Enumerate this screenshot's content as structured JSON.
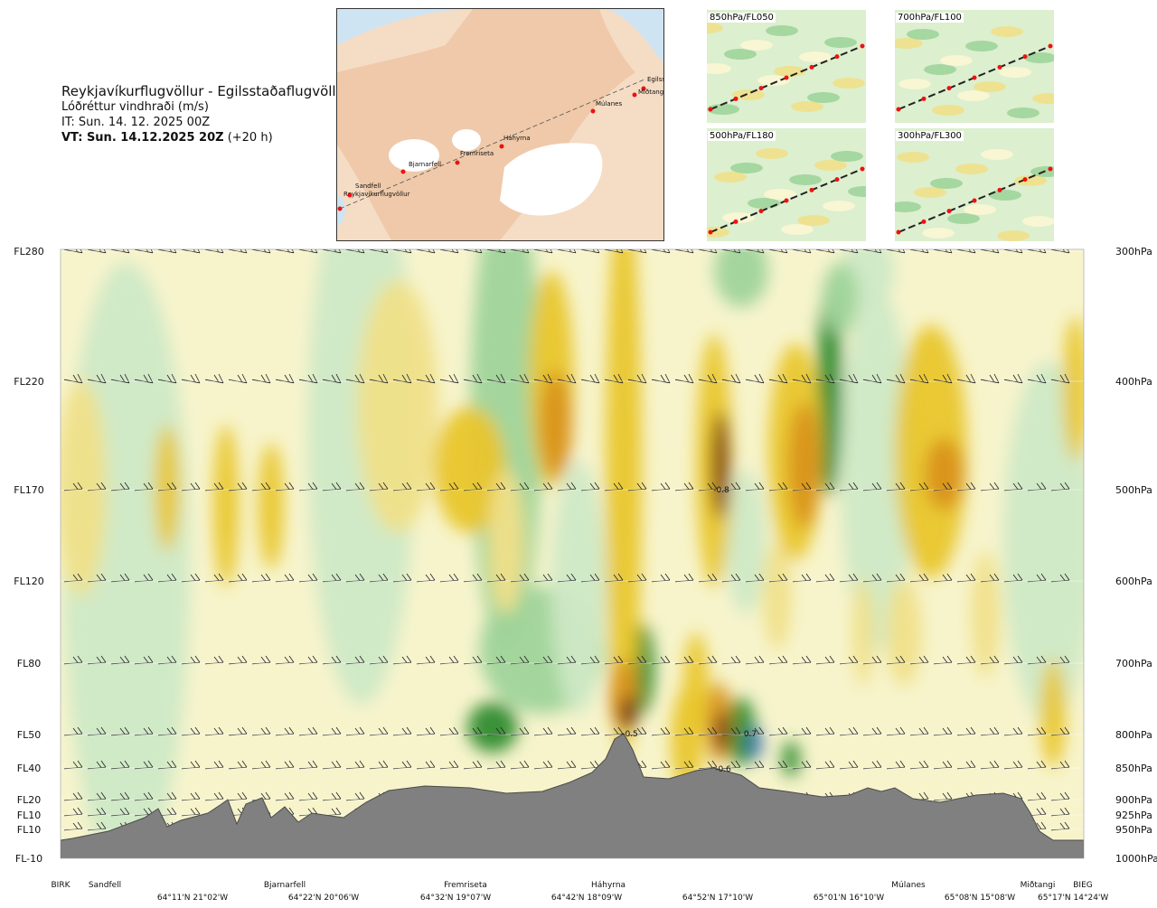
{
  "header": {
    "route": "Reykjavíkurflugvöllur - Egilsstaðaflugvöllur",
    "quantity": "Lóðréttur vindhraði (m/s)",
    "init_time": "IT: Sun. 14. 12. 2025 00Z",
    "valid_time_bold": "VT: Sun. 14.12.2025 20Z",
    "valid_time_offset": " (+20 h)"
  },
  "route_map": {
    "points": [
      "Reykjavíkurflugvöllur",
      "Sandfell",
      "Bjarnarfell",
      "Fremriseta",
      "Háhyrna",
      "Múlanes",
      "Egilsst",
      "Miðtangi"
    ]
  },
  "insets": [
    "850hPa/FL050",
    "700hPa/FL100",
    "500hPa/FL180",
    "300hPa/FL300"
  ],
  "chart_data": {
    "type": "heatmap",
    "title": "Lóðréttur vindhraði (m/s)",
    "left_axis": [
      "FL280",
      "FL220",
      "FL170",
      "FL120",
      "FL80",
      "FL50",
      "FL40",
      "FL20",
      "FL10",
      "FL10",
      "FL-10"
    ],
    "right_axis": [
      "300hPa",
      "400hPa",
      "500hPa",
      "600hPa",
      "700hPa",
      "800hPa",
      "850hPa",
      "900hPa",
      "925hPa",
      "950hPa",
      "1000hPa"
    ],
    "pressure_levels_hpa": [
      300,
      400,
      500,
      600,
      700,
      800,
      850,
      900,
      925,
      950,
      1000
    ],
    "locations": [
      "BIRK",
      "Sandfell",
      "Bjarnarfell",
      "Fremriseta",
      "Háhyrna",
      "Múlanes",
      "Miðtangi",
      "BIEG"
    ],
    "coordinates": [
      "64°11'N 21°02'W",
      "64°22'N 20°06'W",
      "64°32'N 19°07'W",
      "64°42'N 18°09'W",
      "64°52'N 17°10'W",
      "65°01'N 16°10'W",
      "65°08'N 15°08'W",
      "65°17'N 14°24'W"
    ],
    "contour_labels": [
      {
        "text": "-0.8",
        "hpa": 500
      },
      {
        "text": "-0.5",
        "hpa": 800
      },
      {
        "text": "0.7",
        "hpa": 800
      },
      {
        "text": "-0.6",
        "hpa": 850
      }
    ],
    "colors": {
      "strong_up": "#2e8b2e",
      "up": "#9fd49a",
      "weak_up": "#cfe9c6",
      "neutral": "#f7f4cc",
      "weak_down": "#f0e089",
      "down": "#e9c62c",
      "strong_down": "#d9921f",
      "extreme_down": "#7a3a12",
      "terrain": "#808080"
    }
  }
}
